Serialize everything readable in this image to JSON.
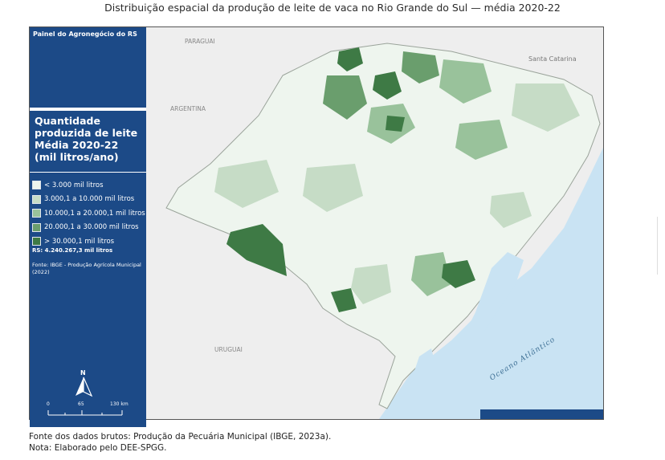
{
  "title": "Distribuição espacial da produção de leite de vaca no Rio Grande do Sul — média 2020-22",
  "panel": {
    "header": "Painel do Agronegócio do RS",
    "legend_title": "Quantidade produzida de leite Média 2020-22 (mil litros/ano)",
    "legend": [
      {
        "label": "< 3.000 mil litros",
        "color": "#eef5ee"
      },
      {
        "label": "3.000,1 a 10.000 mil litros",
        "color": "#c6dcc6"
      },
      {
        "label": "10.000,1 a 20.000,1 mil litros",
        "color": "#99c29b"
      },
      {
        "label": "20.000,1 a 30.000 mil litros",
        "color": "#6a9e6d"
      },
      {
        "label": "> 30.000,1 mil litros",
        "color": "#3e7a45"
      }
    ],
    "total": "RS: 4.240.267,3 mil litros",
    "source": "Fonte: IBGE - Produção Agrícola Municipal (2022)",
    "north_label": "N",
    "scale": {
      "labels": [
        "0",
        "65",
        "130 km"
      ]
    }
  },
  "map": {
    "labels": {
      "paraguai": "PARAGUAI",
      "argentina": "ARGENTINA",
      "santa_catarina": "Santa Catarina",
      "uruguai": "URUGUAI",
      "oceano": "Oceano Atlântico"
    },
    "colors": {
      "background": "#eeeeee",
      "ocean": "#c9e3f3",
      "state": "#eef5ee",
      "border": "#ffffff"
    }
  },
  "footer": {
    "line1": "Fonte dos dados brutos: Produção da Pecuária Municipal (IBGE, 2023a).",
    "line2": "Nota: Elaborado pelo DEE-SPGG."
  }
}
